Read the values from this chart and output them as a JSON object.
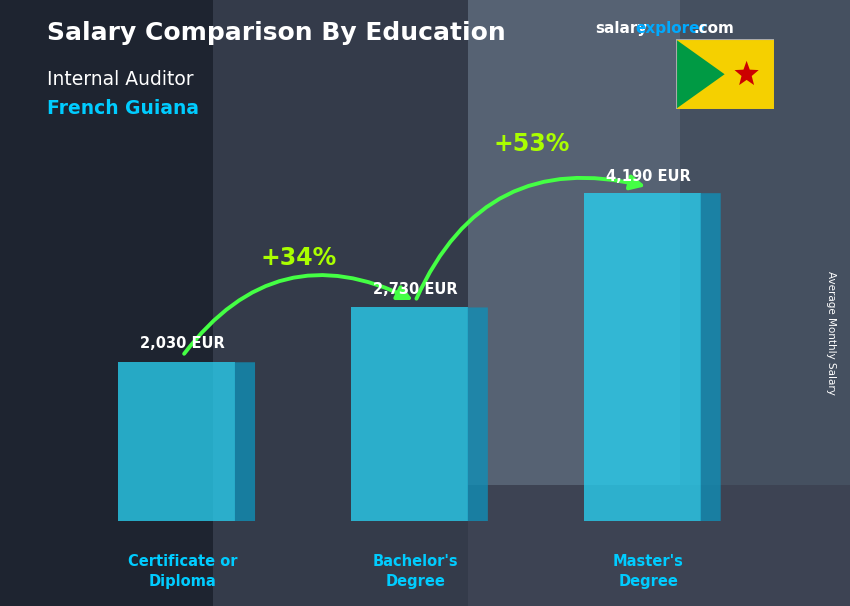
{
  "title_bold": "Salary Comparison By Education",
  "subtitle1": "Internal Auditor",
  "subtitle2": "French Guiana",
  "watermark_salary": "salary",
  "watermark_explorer": "explorer",
  "watermark_com": ".com",
  "ylabel_rotated": "Average Monthly Salary",
  "categories": [
    "Certificate or\nDiploma",
    "Bachelor's\nDegree",
    "Master's\nDegree"
  ],
  "values": [
    2030,
    2730,
    4190
  ],
  "value_labels": [
    "2,030 EUR",
    "2,730 EUR",
    "4,190 EUR"
  ],
  "pct_labels": [
    "+34%",
    "+53%"
  ],
  "bar_face_color": "#29d0f0",
  "bar_face_alpha": 0.75,
  "bar_side_color": "#1090b8",
  "bar_top_color": "#80eaff",
  "title_color": "#ffffff",
  "subtitle1_color": "#ffffff",
  "subtitle2_color": "#00ccff",
  "value_label_color": "#ffffff",
  "pct_color": "#aaff00",
  "arrow_color": "#44ff44",
  "watermark_salary_color": "#ffffff",
  "watermark_explorer_color": "#00aaff",
  "watermark_com_color": "#ffffff",
  "ylabel_color": "#ffffff",
  "cat_label_color": "#00ccff",
  "bg_color": "#3a4555"
}
